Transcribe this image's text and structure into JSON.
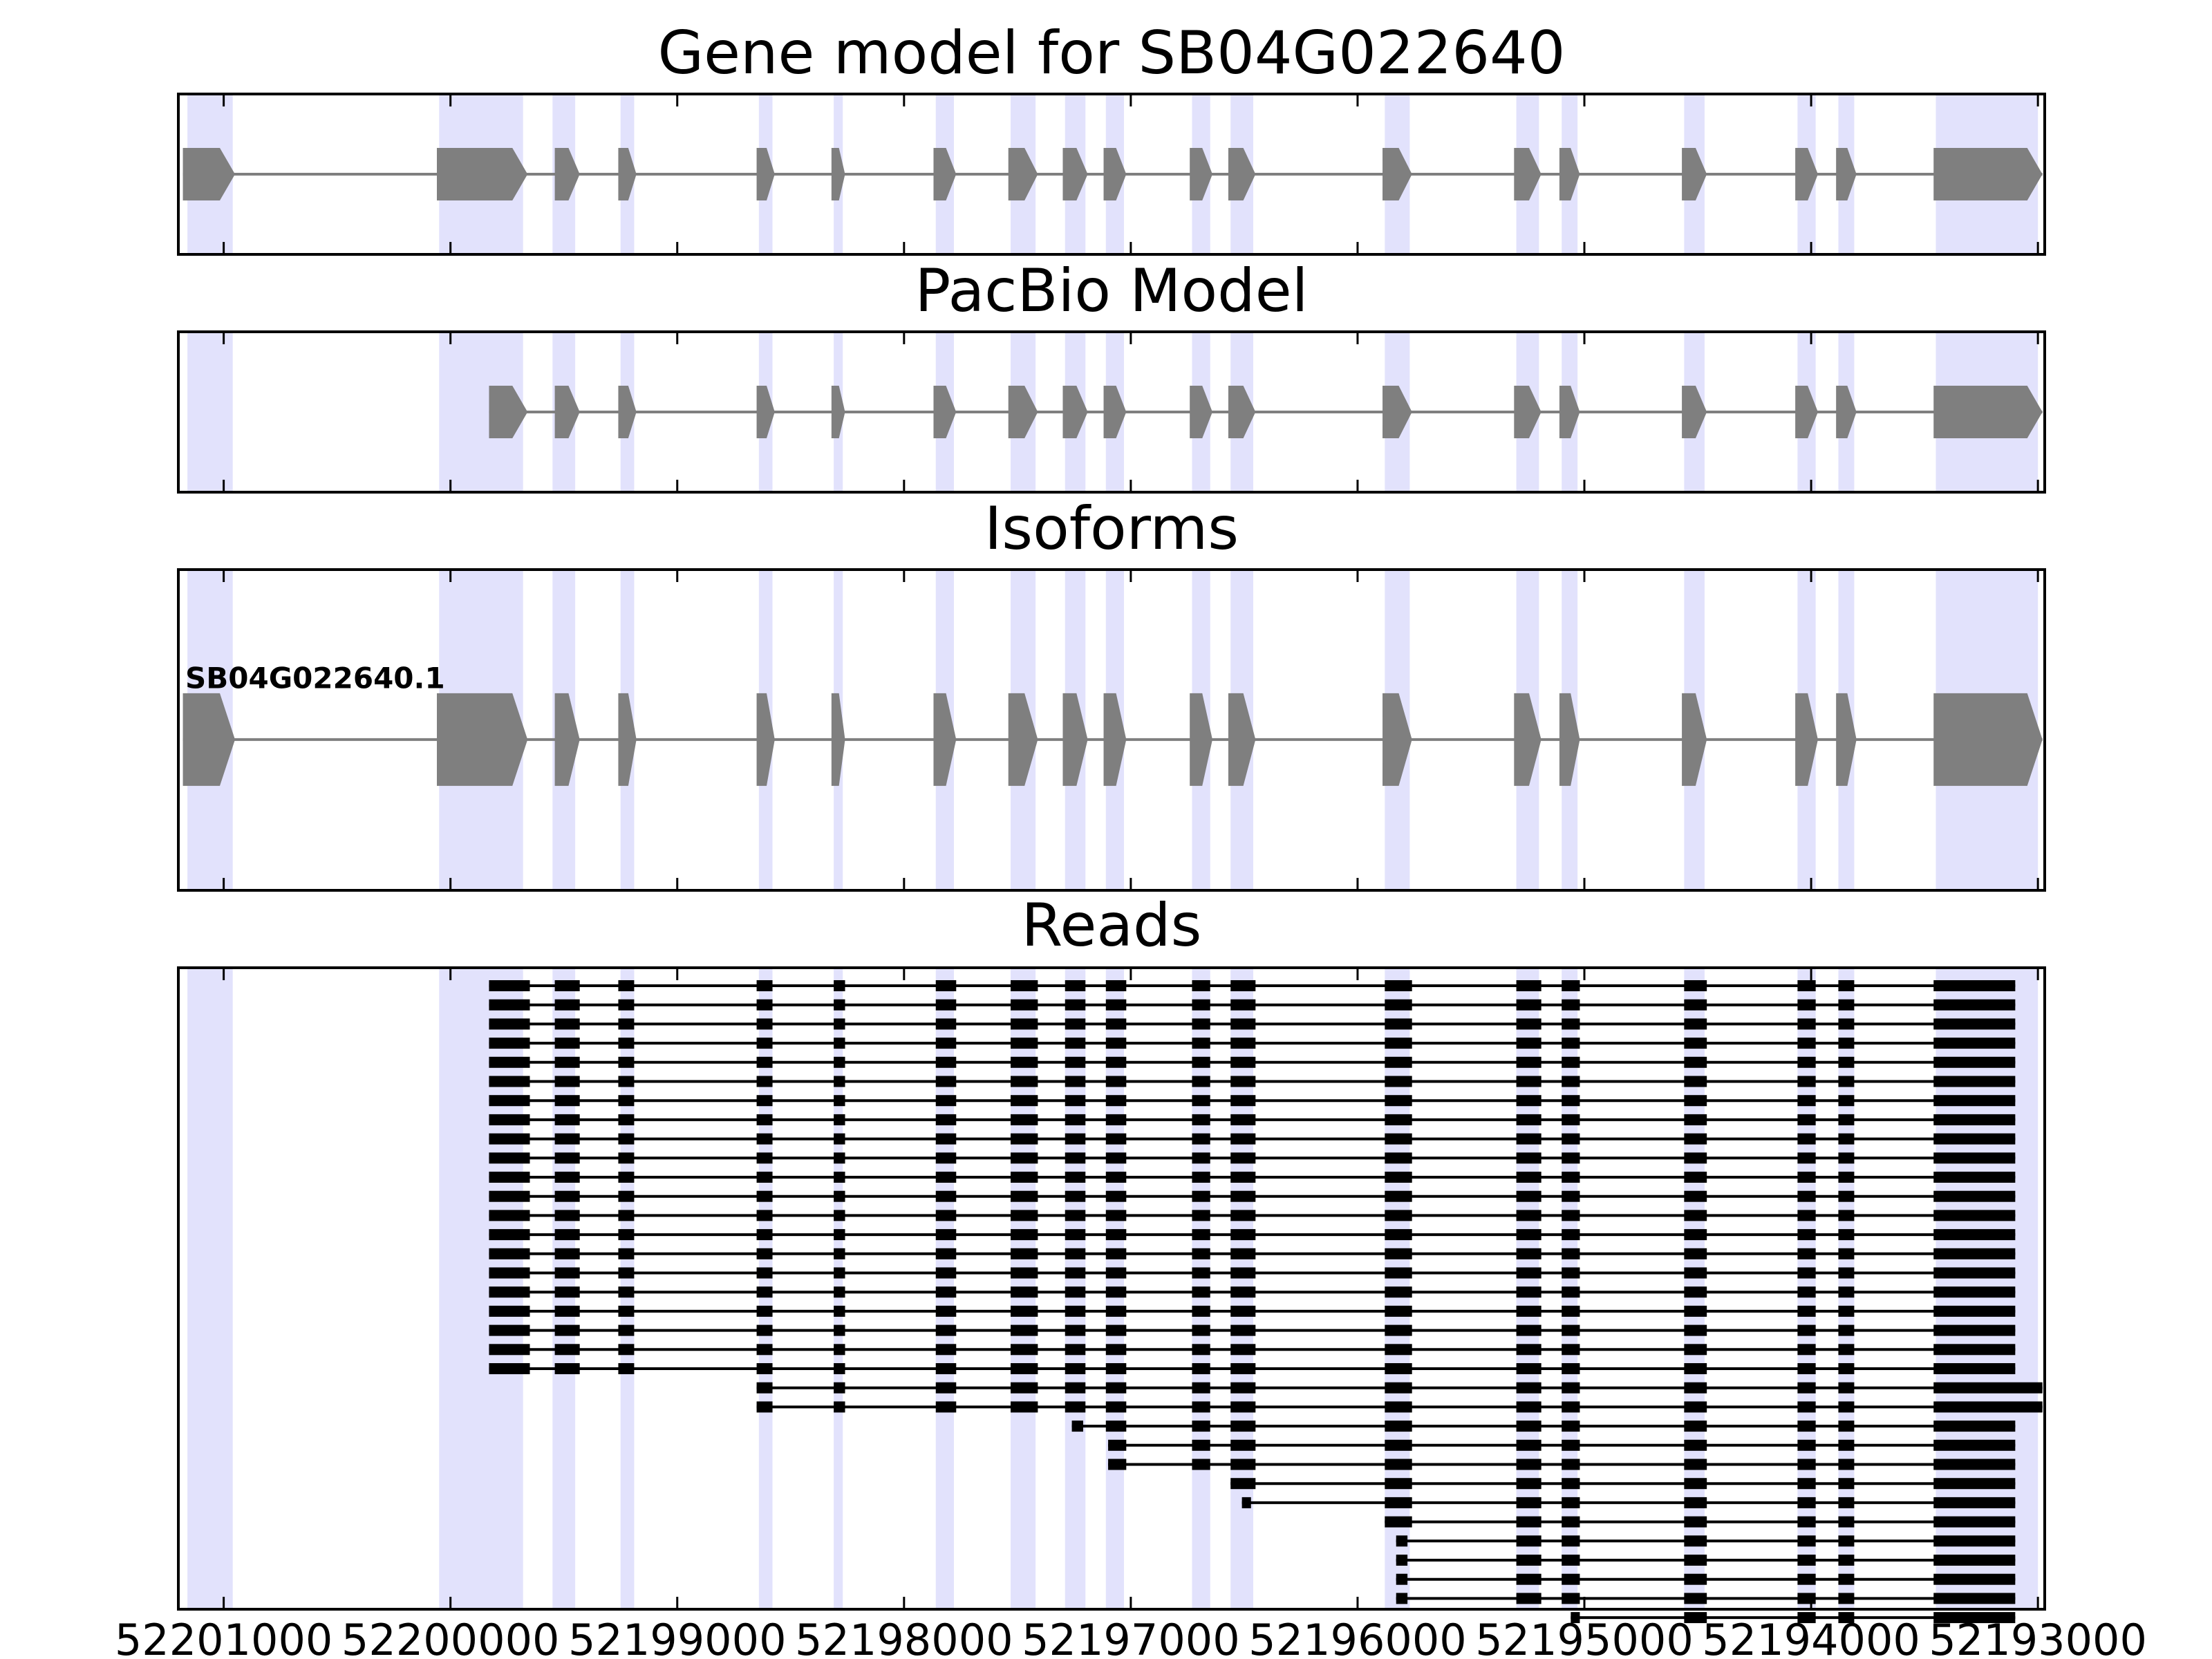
{
  "chart_data": {
    "type": "gene-structure",
    "x_axis": {
      "range": [
        52201200,
        52192970
      ],
      "reversed": true,
      "ticks": [
        52201000,
        52200000,
        52199000,
        52198000,
        52197000,
        52196000,
        52195000,
        52194000,
        52193000
      ],
      "tick_labels": [
        "52201000",
        "52200000",
        "52199000",
        "52198000",
        "52197000",
        "52196000",
        "52195000",
        "52194000",
        "52193000"
      ]
    },
    "highlight_regions": [
      [
        52201160,
        52200960
      ],
      [
        52200050,
        52199680
      ],
      [
        52199550,
        52199450
      ],
      [
        52199250,
        52199190
      ],
      [
        52198640,
        52198580
      ],
      [
        52198310,
        52198270
      ],
      [
        52197860,
        52197780
      ],
      [
        52197530,
        52197420
      ],
      [
        52197290,
        52197200
      ],
      [
        52197110,
        52197030
      ],
      [
        52196730,
        52196650
      ],
      [
        52196560,
        52196460
      ],
      [
        52195880,
        52195770
      ],
      [
        52195300,
        52195200
      ],
      [
        52195100,
        52195030
      ],
      [
        52194560,
        52194470
      ],
      [
        52194060,
        52193980
      ],
      [
        52193880,
        52193810
      ],
      [
        52193450,
        52193000
      ]
    ],
    "colors": {
      "highlight": "#e2e2fc",
      "exon": "#7f7f7f",
      "intron": "#7f7f7f",
      "read": "#000000"
    },
    "panels": [
      {
        "title": "Gene model for SB04G022640",
        "models": [
          {
            "label": "",
            "exons": [
              [
                52201180,
                52200950
              ],
              [
                52200060,
                52199660
              ],
              [
                52199540,
                52199430
              ],
              [
                52199260,
                52199180
              ],
              [
                52198650,
                52198570
              ],
              [
                52198320,
                52198260
              ],
              [
                52197870,
                52197770
              ],
              [
                52197540,
                52197410
              ],
              [
                52197300,
                52197190
              ],
              [
                52197120,
                52197020
              ],
              [
                52196740,
                52196640
              ],
              [
                52196570,
                52196450
              ],
              [
                52195890,
                52195760
              ],
              [
                52195310,
                52195190
              ],
              [
                52195110,
                52195020
              ],
              [
                52194570,
                52194460
              ],
              [
                52194070,
                52193970
              ],
              [
                52193890,
                52193800
              ],
              [
                52193460,
                52192980
              ]
            ]
          }
        ]
      },
      {
        "title": "PacBio Model",
        "models": [
          {
            "label": "",
            "exons": [
              [
                52199830,
                52199660
              ],
              [
                52199540,
                52199430
              ],
              [
                52199260,
                52199180
              ],
              [
                52198650,
                52198570
              ],
              [
                52198320,
                52198260
              ],
              [
                52197870,
                52197770
              ],
              [
                52197540,
                52197410
              ],
              [
                52197300,
                52197190
              ],
              [
                52197120,
                52197020
              ],
              [
                52196740,
                52196640
              ],
              [
                52196570,
                52196450
              ],
              [
                52195890,
                52195760
              ],
              [
                52195310,
                52195190
              ],
              [
                52195110,
                52195020
              ],
              [
                52194570,
                52194460
              ],
              [
                52194070,
                52193970
              ],
              [
                52193890,
                52193800
              ],
              [
                52193460,
                52192980
              ]
            ]
          }
        ]
      },
      {
        "title": "Isoforms",
        "models": [
          {
            "label": "SB04G022640.1",
            "exons": [
              [
                52201180,
                52200950
              ],
              [
                52200060,
                52199660
              ],
              [
                52199540,
                52199430
              ],
              [
                52199260,
                52199180
              ],
              [
                52198650,
                52198570
              ],
              [
                52198320,
                52198260
              ],
              [
                52197870,
                52197770
              ],
              [
                52197540,
                52197410
              ],
              [
                52197300,
                52197190
              ],
              [
                52197120,
                52197020
              ],
              [
                52196740,
                52196640
              ],
              [
                52196570,
                52196450
              ],
              [
                52195890,
                52195760
              ],
              [
                52195310,
                52195190
              ],
              [
                52195110,
                52195020
              ],
              [
                52194570,
                52194460
              ],
              [
                52194070,
                52193970
              ],
              [
                52193890,
                52193800
              ],
              [
                52193460,
                52192980
              ]
            ]
          }
        ]
      },
      {
        "title": "Reads",
        "read_groups": [
          {
            "count": 21,
            "exons": [
              [
                52199830,
                52199650
              ],
              [
                52199540,
                52199430
              ],
              [
                52199260,
                52199190
              ],
              [
                52198650,
                52198580
              ],
              [
                52198310,
                52198260
              ],
              [
                52197860,
                52197770
              ],
              [
                52197530,
                52197410
              ],
              [
                52197290,
                52197200
              ],
              [
                52197110,
                52197020
              ],
              [
                52196730,
                52196650
              ],
              [
                52196560,
                52196450
              ],
              [
                52195880,
                52195760
              ],
              [
                52195300,
                52195190
              ],
              [
                52195100,
                52195020
              ],
              [
                52194560,
                52194460
              ],
              [
                52194060,
                52193980
              ],
              [
                52193880,
                52193810
              ],
              [
                52193460,
                52193100
              ]
            ]
          },
          {
            "count": 2,
            "exons": [
              [
                52198650,
                52198580
              ],
              [
                52198310,
                52198260
              ],
              [
                52197860,
                52197770
              ],
              [
                52197530,
                52197410
              ],
              [
                52197290,
                52197200
              ],
              [
                52197110,
                52197020
              ],
              [
                52196730,
                52196650
              ],
              [
                52196560,
                52196450
              ],
              [
                52195880,
                52195760
              ],
              [
                52195300,
                52195190
              ],
              [
                52195100,
                52195020
              ],
              [
                52194560,
                52194460
              ],
              [
                52194060,
                52193980
              ],
              [
                52193880,
                52193810
              ],
              [
                52193460,
                52192980
              ]
            ]
          },
          {
            "count": 1,
            "exons": [
              [
                52197260,
                52197210
              ],
              [
                52197110,
                52197020
              ],
              [
                52196730,
                52196650
              ],
              [
                52196560,
                52196450
              ],
              [
                52195880,
                52195760
              ],
              [
                52195300,
                52195190
              ],
              [
                52195100,
                52195020
              ],
              [
                52194560,
                52194460
              ],
              [
                52194060,
                52193980
              ],
              [
                52193880,
                52193810
              ],
              [
                52193460,
                52193100
              ]
            ]
          },
          {
            "count": 2,
            "exons": [
              [
                52197100,
                52197020
              ],
              [
                52196730,
                52196650
              ],
              [
                52196560,
                52196450
              ],
              [
                52195880,
                52195760
              ],
              [
                52195300,
                52195190
              ],
              [
                52195100,
                52195020
              ],
              [
                52194560,
                52194460
              ],
              [
                52194060,
                52193980
              ],
              [
                52193880,
                52193810
              ],
              [
                52193460,
                52193100
              ]
            ]
          },
          {
            "count": 1,
            "exons": [
              [
                52196560,
                52196450
              ],
              [
                52195880,
                52195760
              ],
              [
                52195300,
                52195190
              ],
              [
                52195100,
                52195020
              ],
              [
                52194560,
                52194460
              ],
              [
                52194060,
                52193980
              ],
              [
                52193880,
                52193810
              ],
              [
                52193460,
                52193100
              ]
            ]
          },
          {
            "count": 1,
            "exons": [
              [
                52196510,
                52196470
              ],
              [
                52195880,
                52195760
              ],
              [
                52195300,
                52195190
              ],
              [
                52195100,
                52195020
              ],
              [
                52194560,
                52194460
              ],
              [
                52194060,
                52193980
              ],
              [
                52193880,
                52193810
              ],
              [
                52193460,
                52193100
              ]
            ]
          },
          {
            "count": 1,
            "exons": [
              [
                52195880,
                52195760
              ],
              [
                52195300,
                52195190
              ],
              [
                52195100,
                52195020
              ],
              [
                52194560,
                52194460
              ],
              [
                52194060,
                52193980
              ],
              [
                52193880,
                52193810
              ],
              [
                52193460,
                52193100
              ]
            ]
          },
          {
            "count": 4,
            "exons": [
              [
                52195830,
                52195780
              ],
              [
                52195300,
                52195190
              ],
              [
                52195100,
                52195020
              ],
              [
                52194560,
                52194460
              ],
              [
                52194060,
                52193980
              ],
              [
                52193880,
                52193810
              ],
              [
                52193460,
                52193100
              ]
            ]
          },
          {
            "count": 1,
            "exons": [
              [
                52195060,
                52195020
              ],
              [
                52194560,
                52194460
              ],
              [
                52194060,
                52193980
              ],
              [
                52193880,
                52193810
              ],
              [
                52193460,
                52193100
              ]
            ]
          }
        ]
      }
    ]
  }
}
